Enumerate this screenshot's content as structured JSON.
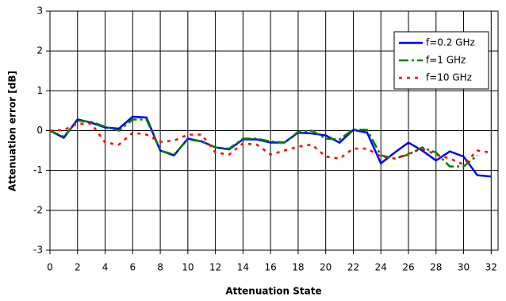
{
  "chart_data": {
    "type": "line",
    "xlabel": "Attenuation State",
    "ylabel": "Attenuation error [dB]",
    "x": [
      0,
      1,
      2,
      3,
      4,
      5,
      6,
      7,
      8,
      9,
      10,
      11,
      12,
      13,
      14,
      15,
      16,
      17,
      18,
      19,
      20,
      21,
      22,
      23,
      24,
      25,
      26,
      27,
      28,
      29,
      30,
      31,
      32
    ],
    "xlim": [
      0,
      32.5
    ],
    "xticks": [
      0,
      2,
      4,
      6,
      8,
      10,
      12,
      14,
      16,
      18,
      20,
      22,
      24,
      26,
      28,
      30,
      32
    ],
    "ylim": [
      -3,
      3
    ],
    "yticks": [
      -3,
      -2,
      -1,
      0,
      1,
      2,
      3
    ],
    "grid": true,
    "legend": "upper right",
    "series": [
      {
        "name": "f=0.2 GHz",
        "color": "#0000ff",
        "values": [
          0,
          -0.18,
          0.28,
          0.2,
          0.08,
          0.05,
          0.35,
          0.33,
          -0.5,
          -0.62,
          -0.2,
          -0.27,
          -0.42,
          -0.47,
          -0.22,
          -0.22,
          -0.3,
          -0.3,
          -0.05,
          -0.07,
          -0.12,
          -0.3,
          0.02,
          -0.05,
          -0.82,
          -0.55,
          -0.3,
          -0.5,
          -0.75,
          -0.52,
          -0.65,
          -1.12,
          -1.15
        ]
      },
      {
        "name": "f=1 GHz",
        "color": "#008000",
        "values": [
          0,
          -0.15,
          0.25,
          0.22,
          0.1,
          0,
          0.28,
          0.28,
          -0.5,
          -0.6,
          -0.22,
          -0.27,
          -0.42,
          -0.45,
          -0.2,
          -0.2,
          -0.27,
          -0.3,
          -0.03,
          0,
          -0.2,
          -0.22,
          0.03,
          0.02,
          -0.62,
          -0.7,
          -0.6,
          -0.42,
          -0.55,
          -0.9,
          -0.9,
          -0.62,
          null
        ]
      },
      {
        "name": "f=10 GHz",
        "color": "#ff0000",
        "values": [
          0,
          0.02,
          0.17,
          0.18,
          -0.3,
          -0.35,
          -0.05,
          -0.1,
          -0.28,
          -0.25,
          -0.1,
          -0.1,
          -0.55,
          -0.6,
          -0.32,
          -0.35,
          -0.6,
          -0.5,
          -0.4,
          -0.35,
          -0.65,
          -0.7,
          -0.45,
          -0.45,
          -0.65,
          -0.7,
          -0.58,
          -0.45,
          -0.6,
          -0.7,
          -0.85,
          -0.5,
          -0.55
        ]
      }
    ]
  }
}
